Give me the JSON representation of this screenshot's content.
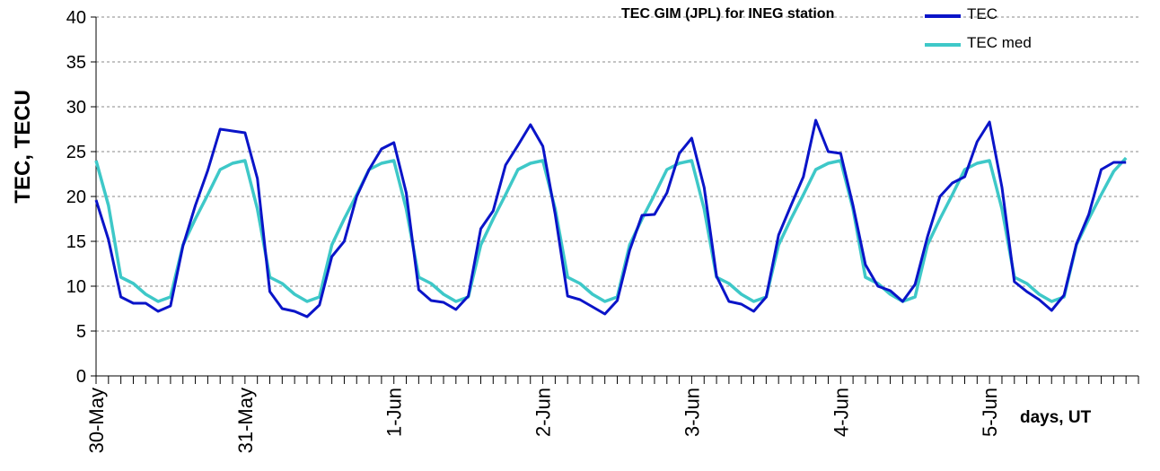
{
  "chart_data": {
    "type": "line",
    "title": "TEC GIM (JPL) for INEG station",
    "ylabel": "TEC, TECU",
    "xlabel": "days, UT",
    "ylim": [
      0,
      40
    ],
    "yticks": [
      0,
      5,
      10,
      15,
      20,
      25,
      30,
      35,
      40
    ],
    "grid": "horizontal dashed",
    "legend_position": "top-right",
    "x_unit": "hours UT since 30-May 00:00",
    "x_tick_labels": [
      "30-May",
      "31-May",
      "1-Jun",
      "2-Jun",
      "3-Jun",
      "4-Jun",
      "5-Jun"
    ],
    "x_tick_positions": [
      0,
      24,
      48,
      72,
      96,
      120,
      144
    ],
    "xlim": [
      0,
      168
    ],
    "sample_step_hours": 2,
    "series": [
      {
        "name": "TEC",
        "color": "#0a14c8",
        "values": [
          19.6,
          15.2,
          8.8,
          8.1,
          8.1,
          7.2,
          7.8,
          14.5,
          19.0,
          22.9,
          27.5,
          27.3,
          27.1,
          22.0,
          9.4,
          7.5,
          7.2,
          6.6,
          7.9,
          13.3,
          15.0,
          20.0,
          23.0,
          25.3,
          26.0,
          20.4,
          9.6,
          8.4,
          8.2,
          7.4,
          8.9,
          16.4,
          18.4,
          23.5,
          25.7,
          28.0,
          25.6,
          18.0,
          8.9,
          8.5,
          7.7,
          6.9,
          8.4,
          14.0,
          17.9,
          18.0,
          20.4,
          24.8,
          26.5,
          21.0,
          11.1,
          8.3,
          8.0,
          7.2,
          8.8,
          15.7,
          19.0,
          22.2,
          28.5,
          25.0,
          24.8,
          19.0,
          12.4,
          10.0,
          9.5,
          8.3,
          10.2,
          15.5,
          20.0,
          21.5,
          22.2,
          26.1,
          28.3,
          21.0,
          10.5,
          9.4,
          8.5,
          7.3,
          9.0,
          14.7,
          18.0,
          23.0,
          23.8,
          23.8
        ]
      },
      {
        "name": "TEC med",
        "color": "#3ec8c8",
        "values": [
          24.0,
          19.0,
          11.0,
          10.3,
          9.1,
          8.3,
          8.8,
          14.6,
          17.5,
          20.2,
          23.0,
          23.7,
          24.0,
          18.6,
          11.0,
          10.3,
          9.1,
          8.3,
          8.8,
          14.6,
          17.5,
          20.2,
          23.0,
          23.7,
          24.0,
          18.6,
          11.0,
          10.3,
          9.1,
          8.3,
          8.8,
          14.6,
          17.5,
          20.2,
          23.0,
          23.7,
          24.0,
          18.6,
          11.0,
          10.3,
          9.1,
          8.3,
          8.8,
          14.6,
          17.5,
          20.2,
          23.0,
          23.7,
          24.0,
          18.6,
          11.0,
          10.3,
          9.1,
          8.3,
          8.8,
          14.6,
          17.5,
          20.2,
          23.0,
          23.7,
          24.0,
          18.6,
          11.0,
          10.3,
          9.1,
          8.3,
          8.8,
          14.6,
          17.5,
          20.2,
          23.0,
          23.7,
          24.0,
          18.6,
          11.0,
          10.3,
          9.1,
          8.3,
          8.8,
          14.6,
          17.5,
          20.2,
          22.8,
          24.3
        ]
      }
    ]
  }
}
